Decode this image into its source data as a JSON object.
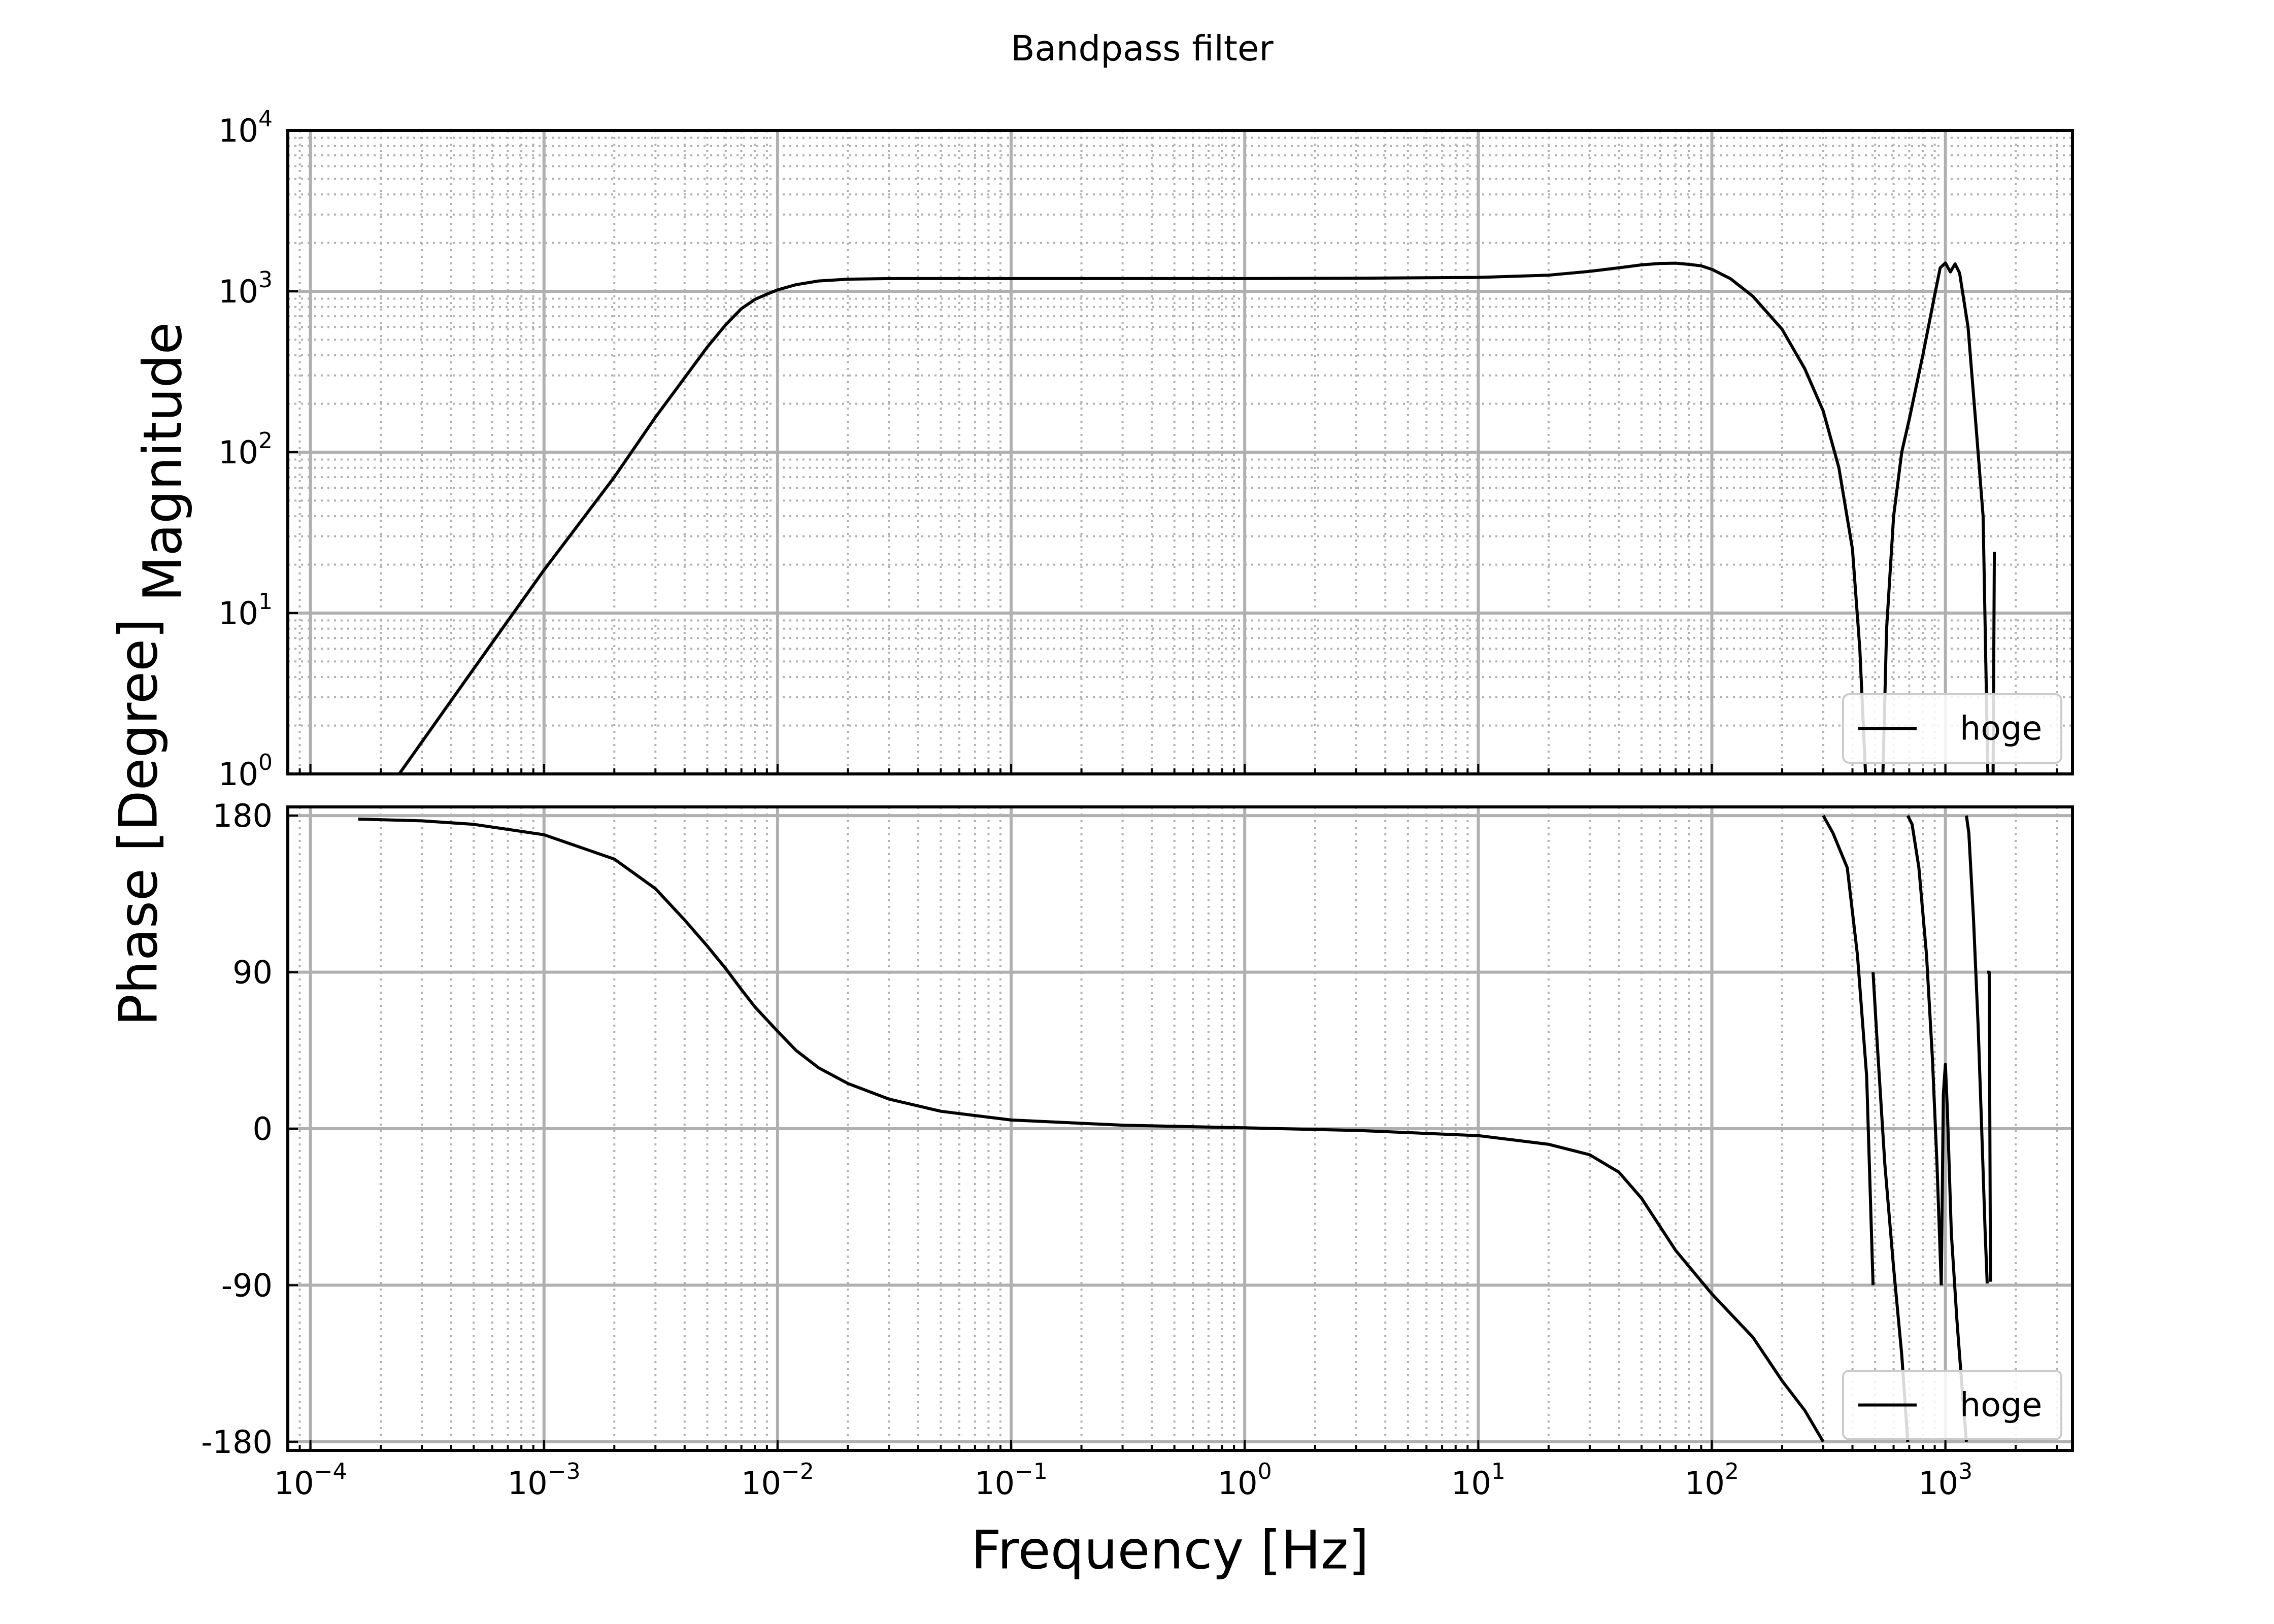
{
  "chart_data": {
    "type": "line",
    "title": "Bandpass filter",
    "xlabel": "Frequency [Hz]",
    "xscale": "log",
    "xlim": [
      8e-05,
      3500
    ],
    "grid": true,
    "colors": {
      "line": "#000000",
      "major_grid": "#b0b0b0",
      "minor_grid": "#b0b0b0",
      "legend_border": "#cccccc"
    },
    "xticks": [
      {
        "exp": -4,
        "label": "10",
        "sup": "−4"
      },
      {
        "exp": -3,
        "label": "10",
        "sup": "−3"
      },
      {
        "exp": -2,
        "label": "10",
        "sup": "−2"
      },
      {
        "exp": -1,
        "label": "10",
        "sup": "−1"
      },
      {
        "exp": 0,
        "label": "10",
        "sup": "0"
      },
      {
        "exp": 1,
        "label": "10",
        "sup": "1"
      },
      {
        "exp": 2,
        "label": "10",
        "sup": "2"
      },
      {
        "exp": 3,
        "label": "10",
        "sup": "3"
      }
    ],
    "magnitude": {
      "ylabel": "Magnitude",
      "yscale": "log",
      "ylim": [
        1,
        10000
      ],
      "yticks": [
        {
          "exp": 0,
          "label": "10",
          "sup": "0"
        },
        {
          "exp": 1,
          "label": "10",
          "sup": "1"
        },
        {
          "exp": 2,
          "label": "10",
          "sup": "2"
        },
        {
          "exp": 3,
          "label": "10",
          "sup": "3"
        },
        {
          "exp": 4,
          "label": "10",
          "sup": "4"
        }
      ],
      "legend": {
        "label": "hoge",
        "position": "lower-right"
      },
      "series": [
        {
          "name": "hoge",
          "segments": [
            [
              [
                0.00024,
                1
              ],
              [
                0.0005,
                4.5
              ],
              [
                0.001,
                18.5
              ],
              [
                0.002,
                70
              ],
              [
                0.003,
                165
              ],
              [
                0.004,
                290
              ],
              [
                0.005,
                450
              ],
              [
                0.006,
                620
              ],
              [
                0.007,
                780
              ],
              [
                0.008,
                890
              ],
              [
                0.009,
                960
              ],
              [
                0.01,
                1020
              ],
              [
                0.012,
                1100
              ],
              [
                0.015,
                1160
              ],
              [
                0.02,
                1190
              ],
              [
                0.03,
                1200
              ],
              [
                0.05,
                1200
              ],
              [
                0.1,
                1200
              ],
              [
                0.3,
                1200
              ],
              [
                1,
                1200
              ],
              [
                3,
                1205
              ],
              [
                10,
                1220
              ],
              [
                20,
                1260
              ],
              [
                30,
                1330
              ],
              [
                40,
                1400
              ],
              [
                50,
                1460
              ],
              [
                60,
                1490
              ],
              [
                70,
                1495
              ],
              [
                80,
                1470
              ],
              [
                90,
                1440
              ],
              [
                100,
                1370
              ],
              [
                120,
                1200
              ],
              [
                150,
                930
              ],
              [
                200,
                580
              ],
              [
                250,
                330
              ],
              [
                300,
                180
              ],
              [
                350,
                80
              ],
              [
                400,
                25
              ],
              [
                430,
                6
              ],
              [
                455,
                1
              ]
            ],
            [
              [
                540,
                1
              ],
              [
                560,
                8
              ],
              [
                600,
                40
              ],
              [
                650,
                100
              ],
              [
                700,
                160
              ],
              [
                800,
                400
              ],
              [
                900,
                950
              ],
              [
                950,
                1400
              ],
              [
                1000,
                1500
              ],
              [
                1050,
                1320
              ],
              [
                1100,
                1480
              ],
              [
                1150,
                1300
              ],
              [
                1250,
                600
              ],
              [
                1350,
                150
              ],
              [
                1450,
                40
              ],
              [
                1520,
                1
              ]
            ],
            [
              [
                1600,
                1
              ],
              [
                1620,
                24
              ]
            ]
          ]
        }
      ]
    },
    "phase": {
      "ylabel": "Phase [Degree]",
      "yscale": "linear",
      "ylim": [
        -185,
        185
      ],
      "yticks": [
        {
          "value": 180,
          "label": "180"
        },
        {
          "value": 90,
          "label": "90"
        },
        {
          "value": 0,
          "label": "0"
        },
        {
          "value": -90,
          "label": "-90"
        },
        {
          "value": -180,
          "label": "-180"
        }
      ],
      "legend": {
        "label": "hoge",
        "position": "lower-right"
      },
      "series": [
        {
          "name": "hoge",
          "segments": [
            [
              [
                0.00016,
                178
              ],
              [
                0.0003,
                177
              ],
              [
                0.0005,
                175
              ],
              [
                0.001,
                169
              ],
              [
                0.002,
                155
              ],
              [
                0.003,
                138
              ],
              [
                0.004,
                120
              ],
              [
                0.005,
                105
              ],
              [
                0.006,
                92
              ],
              [
                0.007,
                80
              ],
              [
                0.008,
                70
              ],
              [
                0.01,
                56
              ],
              [
                0.012,
                45
              ],
              [
                0.015,
                35
              ],
              [
                0.02,
                26
              ],
              [
                0.03,
                17
              ],
              [
                0.05,
                10
              ],
              [
                0.1,
                5
              ],
              [
                0.3,
                2
              ],
              [
                1,
                0.5
              ],
              [
                3,
                -1
              ],
              [
                10,
                -4
              ],
              [
                20,
                -9
              ],
              [
                30,
                -15
              ],
              [
                40,
                -25
              ],
              [
                50,
                -40
              ],
              [
                70,
                -70
              ],
              [
                100,
                -95
              ],
              [
                150,
                -120
              ],
              [
                200,
                -145
              ],
              [
                250,
                -162
              ],
              [
                300,
                -180
              ]
            ],
            [
              [
                300,
                180
              ],
              [
                330,
                170
              ],
              [
                380,
                150
              ],
              [
                420,
                100
              ],
              [
                460,
                30
              ],
              [
                490,
                -90
              ]
            ],
            [
              [
                490,
                90
              ],
              [
                510,
                50
              ],
              [
                550,
                -20
              ],
              [
                600,
                -80
              ],
              [
                650,
                -130
              ],
              [
                690,
                -180
              ]
            ],
            [
              [
                690,
                180
              ],
              [
                720,
                175
              ],
              [
                770,
                150
              ],
              [
                830,
                100
              ],
              [
                880,
                40
              ],
              [
                920,
                -20
              ],
              [
                960,
                -90
              ]
            ],
            [
              [
                960,
                -90
              ],
              [
                980,
                20
              ],
              [
                1000,
                37
              ],
              [
                1020,
                10
              ],
              [
                1060,
                -60
              ],
              [
                1120,
                -110
              ],
              [
                1180,
                -150
              ],
              [
                1230,
                -180
              ]
            ],
            [
              [
                1230,
                180
              ],
              [
                1260,
                170
              ],
              [
                1320,
                120
              ],
              [
                1380,
                60
              ],
              [
                1430,
                0
              ],
              [
                1480,
                -60
              ],
              [
                1510,
                -89
              ]
            ],
            [
              [
                1510,
                90
              ],
              [
                1540,
                90
              ],
              [
                1560,
                -88
              ]
            ]
          ]
        }
      ]
    }
  }
}
